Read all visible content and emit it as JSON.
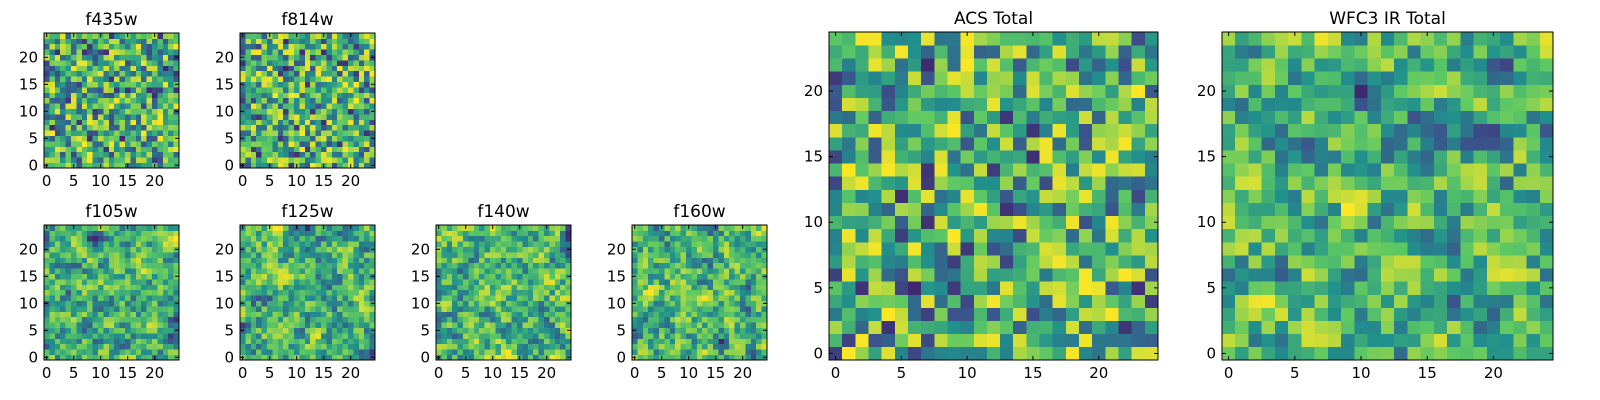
{
  "colormap": {
    "name": "viridis",
    "stops": [
      "#440154",
      "#3b528b",
      "#21908c",
      "#5dc863",
      "#fde725"
    ]
  },
  "chart_data": [
    {
      "type": "heatmap",
      "title": "f435w",
      "grid_size": 25,
      "xticks": [
        0,
        5,
        10,
        15,
        20
      ],
      "yticks": [
        0,
        5,
        10,
        15,
        20
      ],
      "grid": false,
      "seed": 11,
      "smooth": 0
    },
    {
      "type": "heatmap",
      "title": "f814w",
      "grid_size": 25,
      "xticks": [
        0,
        5,
        10,
        15,
        20
      ],
      "yticks": [
        0,
        5,
        10,
        15,
        20
      ],
      "grid": false,
      "seed": 23,
      "smooth": 0
    },
    {
      "type": "heatmap",
      "title": "f105w",
      "grid_size": 25,
      "xticks": [
        0,
        5,
        10,
        15,
        20
      ],
      "yticks": [
        0,
        5,
        10,
        15,
        20
      ],
      "grid": false,
      "seed": 37,
      "smooth": 1
    },
    {
      "type": "heatmap",
      "title": "f125w",
      "grid_size": 25,
      "xticks": [
        0,
        5,
        10,
        15,
        20
      ],
      "yticks": [
        0,
        5,
        10,
        15,
        20
      ],
      "grid": false,
      "seed": 41,
      "smooth": 1
    },
    {
      "type": "heatmap",
      "title": "f140w",
      "grid_size": 25,
      "xticks": [
        0,
        5,
        10,
        15,
        20
      ],
      "yticks": [
        0,
        5,
        10,
        15,
        20
      ],
      "grid": false,
      "seed": 53,
      "smooth": 1
    },
    {
      "type": "heatmap",
      "title": "f160w",
      "grid_size": 25,
      "xticks": [
        0,
        5,
        10,
        15,
        20
      ],
      "yticks": [
        0,
        5,
        10,
        15,
        20
      ],
      "grid": false,
      "seed": 67,
      "smooth": 1
    },
    {
      "type": "heatmap",
      "title": "ACS Total",
      "grid_size": 25,
      "xticks": [
        0,
        5,
        10,
        15,
        20
      ],
      "yticks": [
        0,
        5,
        10,
        15,
        20
      ],
      "grid": false,
      "seed": 79,
      "smooth": 0
    },
    {
      "type": "heatmap",
      "title": "WFC3 IR Total",
      "grid_size": 25,
      "xticks": [
        0,
        5,
        10,
        15,
        20
      ],
      "yticks": [
        0,
        5,
        10,
        15,
        20
      ],
      "grid": false,
      "seed": 97,
      "smooth": 1
    }
  ]
}
